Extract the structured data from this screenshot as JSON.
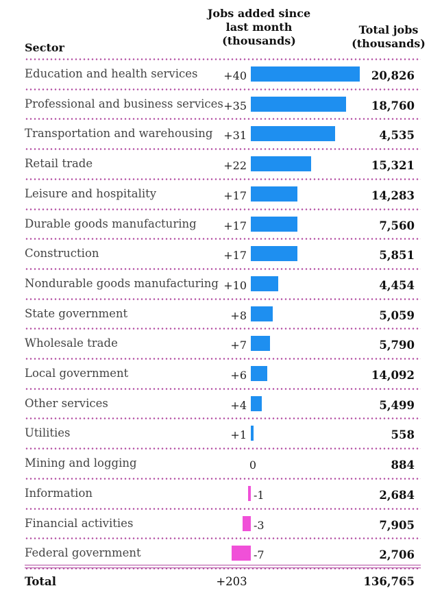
{
  "headers": {
    "sector": "Sector",
    "jobs_added_line1": "Jobs added since",
    "jobs_added_line2": "last month",
    "jobs_added_line3": "(thousands)",
    "total_line1": "Total jobs",
    "total_line2": "(thousands)"
  },
  "colors": {
    "positive": "#1e8ff0",
    "negative": "#f050d8",
    "rule": "#b14aa0"
  },
  "chart_data": {
    "type": "table",
    "title": "",
    "columns": [
      "Sector",
      "Jobs added since last month (thousands)",
      "Total jobs (thousands)"
    ],
    "rows": [
      {
        "sector": "Education and health services",
        "added": 40,
        "added_label": "+40",
        "total": "20,826"
      },
      {
        "sector": "Professional and business services",
        "added": 35,
        "added_label": "+35",
        "total": "18,760"
      },
      {
        "sector": "Transportation and warehousing",
        "added": 31,
        "added_label": "+31",
        "total": "4,535"
      },
      {
        "sector": "Retail trade",
        "added": 22,
        "added_label": "+22",
        "total": "15,321"
      },
      {
        "sector": "Leisure and hospitality",
        "added": 17,
        "added_label": "+17",
        "total": "14,283"
      },
      {
        "sector": "Durable goods manufacturing",
        "added": 17,
        "added_label": "+17",
        "total": "7,560"
      },
      {
        "sector": "Construction",
        "added": 17,
        "added_label": "+17",
        "total": "5,851"
      },
      {
        "sector": "Nondurable goods manufacturing",
        "added": 10,
        "added_label": "+10",
        "total": "4,454"
      },
      {
        "sector": "State government",
        "added": 8,
        "added_label": "+8",
        "total": "5,059"
      },
      {
        "sector": "Wholesale trade",
        "added": 7,
        "added_label": "+7",
        "total": "5,790"
      },
      {
        "sector": "Local government",
        "added": 6,
        "added_label": "+6",
        "total": "14,092"
      },
      {
        "sector": "Other services",
        "added": 4,
        "added_label": "+4",
        "total": "5,499"
      },
      {
        "sector": "Utilities",
        "added": 1,
        "added_label": "+1",
        "total": "558"
      },
      {
        "sector": "Mining and logging",
        "added": 0,
        "added_label": "0",
        "total": "884"
      },
      {
        "sector": "Information",
        "added": -1,
        "added_label": "-1",
        "total": "2,684"
      },
      {
        "sector": "Financial activities",
        "added": -3,
        "added_label": "-3",
        "total": "7,905"
      },
      {
        "sector": "Federal government",
        "added": -7,
        "added_label": "-7",
        "total": "2,706"
      }
    ],
    "total": {
      "label": "Total",
      "added_label": "+203",
      "total": "136,765"
    }
  }
}
